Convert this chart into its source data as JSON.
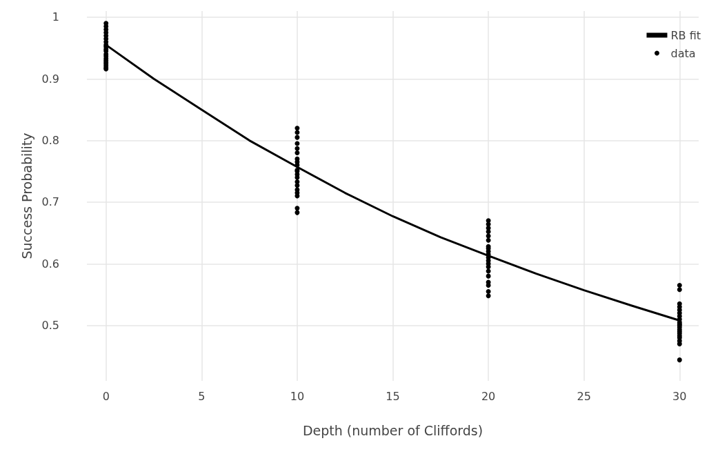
{
  "chart_data": {
    "type": "scatter",
    "xlabel": "Depth (number of Cliffords)",
    "ylabel": "Success Probability",
    "xlim": [
      -1,
      31
    ],
    "xticks": [
      0,
      5,
      10,
      15,
      20,
      25,
      30
    ],
    "ylim": [
      0.41,
      1.01
    ],
    "yticks": [
      0.5,
      0.6,
      0.7,
      0.8,
      0.9,
      1
    ],
    "grid": true,
    "legend": "top right",
    "series": [
      {
        "name": "RB fit",
        "type": "line",
        "color": "#000000",
        "marker": "none",
        "line_style": "solid",
        "x": [
          0,
          2.5,
          5,
          7.5,
          10,
          12.5,
          15,
          17.5,
          20,
          22.5,
          25,
          27.5,
          30
        ],
        "values": [
          0.955,
          0.9,
          0.85,
          0.8,
          0.757,
          0.715,
          0.677,
          0.643,
          0.613,
          0.584,
          0.557,
          0.532,
          0.508
        ]
      },
      {
        "name": "data",
        "color": "#000000",
        "marker": "circle",
        "x": [
          0,
          0,
          0,
          0,
          0,
          0,
          0,
          0,
          0,
          0,
          0,
          0,
          0,
          0,
          0,
          0,
          0,
          0,
          0,
          0,
          10,
          10,
          10,
          10,
          10,
          10,
          10,
          10,
          10,
          10,
          10,
          10,
          10,
          10,
          10,
          10,
          10,
          10,
          10,
          10,
          20,
          20,
          20,
          20,
          20,
          20,
          20,
          20,
          20,
          20,
          20,
          20,
          20,
          20,
          20,
          20,
          20,
          20,
          20,
          20,
          30,
          30,
          30,
          30,
          30,
          30,
          30,
          30,
          30,
          30,
          30,
          30,
          30,
          30,
          30,
          30,
          30,
          30,
          30,
          30
        ],
        "values": [
          0.99,
          0.985,
          0.98,
          0.975,
          0.97,
          0.965,
          0.96,
          0.955,
          0.952,
          0.948,
          0.945,
          0.94,
          0.937,
          0.933,
          0.93,
          0.927,
          0.924,
          0.921,
          0.918,
          0.916,
          0.82,
          0.813,
          0.805,
          0.795,
          0.787,
          0.78,
          0.77,
          0.76,
          0.752,
          0.745,
          0.74,
          0.733,
          0.727,
          0.72,
          0.715,
          0.71,
          0.69,
          0.683,
          0.765,
          0.75,
          0.67,
          0.664,
          0.658,
          0.652,
          0.645,
          0.638,
          0.628,
          0.62,
          0.615,
          0.61,
          0.605,
          0.6,
          0.595,
          0.588,
          0.58,
          0.57,
          0.565,
          0.555,
          0.548,
          0.625,
          0.565,
          0.558,
          0.535,
          0.53,
          0.525,
          0.52,
          0.515,
          0.51,
          0.505,
          0.5,
          0.497,
          0.493,
          0.49,
          0.487,
          0.483,
          0.48,
          0.475,
          0.47,
          0.444,
          0.502
        ]
      }
    ]
  }
}
